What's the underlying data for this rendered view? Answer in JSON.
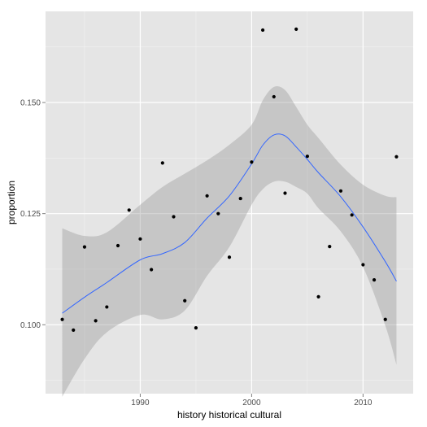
{
  "chart_data": {
    "type": "scatter",
    "title": "",
    "xlabel": "history historical cultural",
    "ylabel": "proportion",
    "xlim": [
      1981.5,
      2014.5
    ],
    "ylim": [
      0.0845,
      0.1705
    ],
    "x_ticks": [
      1990,
      2000,
      2010
    ],
    "y_ticks": [
      0.1,
      0.125,
      0.15
    ],
    "x_tick_labels": [
      "1990",
      "2000",
      "2010"
    ],
    "y_tick_labels": [
      "0.100",
      "0.125",
      "0.150"
    ],
    "grid": true,
    "background": "#e5e5e5",
    "point_color": "#000000",
    "smooth_color": "#3366ff",
    "ribbon_color": "#999999",
    "points": [
      {
        "x": 1983,
        "y": 0.1012
      },
      {
        "x": 1984,
        "y": 0.0988
      },
      {
        "x": 1985,
        "y": 0.1175
      },
      {
        "x": 1986,
        "y": 0.1009
      },
      {
        "x": 1987,
        "y": 0.104
      },
      {
        "x": 1988,
        "y": 0.1178
      },
      {
        "x": 1989,
        "y": 0.1258
      },
      {
        "x": 1990,
        "y": 0.1193
      },
      {
        "x": 1991,
        "y": 0.1124
      },
      {
        "x": 1992,
        "y": 0.1364
      },
      {
        "x": 1993,
        "y": 0.1243
      },
      {
        "x": 1994,
        "y": 0.1054
      },
      {
        "x": 1995,
        "y": 0.0993
      },
      {
        "x": 1996,
        "y": 0.129
      },
      {
        "x": 1997,
        "y": 0.125
      },
      {
        "x": 1998,
        "y": 0.1152
      },
      {
        "x": 1999,
        "y": 0.1284
      },
      {
        "x": 2000,
        "y": 0.1366
      },
      {
        "x": 2001,
        "y": 0.1663
      },
      {
        "x": 2002,
        "y": 0.1513
      },
      {
        "x": 2003,
        "y": 0.1296
      },
      {
        "x": 2004,
        "y": 0.1665
      },
      {
        "x": 2005,
        "y": 0.1379
      },
      {
        "x": 2006,
        "y": 0.1063
      },
      {
        "x": 2007,
        "y": 0.1176
      },
      {
        "x": 2008,
        "y": 0.1301
      },
      {
        "x": 2009,
        "y": 0.1247
      },
      {
        "x": 2010,
        "y": 0.1135
      },
      {
        "x": 2011,
        "y": 0.1101
      },
      {
        "x": 2012,
        "y": 0.1012
      },
      {
        "x": 2013,
        "y": 0.1378
      }
    ],
    "smooth": {
      "x": [
        1983,
        1985,
        1987,
        1990,
        1992,
        1994,
        1996,
        1998,
        2000,
        2001,
        2002,
        2003,
        2004,
        2005,
        2006,
        2008,
        2010,
        2012,
        2013
      ],
      "y": [
        0.1026,
        0.1062,
        0.1095,
        0.1146,
        0.116,
        0.1185,
        0.124,
        0.129,
        0.1362,
        0.1404,
        0.1427,
        0.1425,
        0.14,
        0.1372,
        0.1342,
        0.1288,
        0.122,
        0.1142,
        0.1098
      ],
      "upper": [
        0.1217,
        0.12,
        0.1208,
        0.127,
        0.131,
        0.134,
        0.137,
        0.1405,
        0.145,
        0.1505,
        0.1535,
        0.1528,
        0.149,
        0.145,
        0.142,
        0.136,
        0.1315,
        0.129,
        0.1287
      ],
      "lower": [
        0.0838,
        0.0923,
        0.0983,
        0.1022,
        0.1012,
        0.1032,
        0.111,
        0.1175,
        0.127,
        0.1305,
        0.1322,
        0.1322,
        0.131,
        0.1295,
        0.1262,
        0.121,
        0.113,
        0.0998,
        0.091
      ]
    }
  }
}
